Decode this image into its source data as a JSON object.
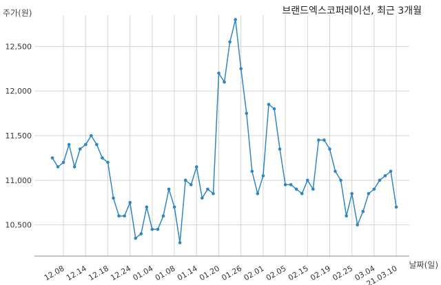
{
  "chart_data": {
    "type": "line",
    "title": "브랜드엑스코퍼레이션, 최근 3개월",
    "ylabel": "주가(원)",
    "xlabel": "날짜(일)",
    "ylim": [
      10150,
      12850
    ],
    "yticks": [
      10500,
      11000,
      11500,
      12000,
      12500
    ],
    "ytick_labels": [
      "10,500",
      "11,000",
      "11,500",
      "12,000",
      "12,500"
    ],
    "xtick_labels": [
      "12.08",
      "12.14",
      "12.18",
      "12.24",
      "01.04",
      "01.08",
      "01.14",
      "01.20",
      "01.26",
      "02.01",
      "02.05",
      "02.15",
      "02.19",
      "02.25",
      "03.04",
      "21.03.10"
    ],
    "xtick_index": [
      2,
      6,
      10,
      14,
      18,
      22,
      26,
      30,
      34,
      38,
      42,
      46,
      50,
      54,
      58,
      62
    ],
    "grid": true,
    "color": "#2e86c1",
    "series": [
      {
        "values": [
          11250,
          11150,
          11200,
          11400,
          11150,
          11350,
          11400,
          11500,
          11400,
          11250,
          11200,
          10800,
          10600,
          10600,
          10750,
          10350,
          10400,
          10700,
          10450,
          10450,
          10600,
          10900,
          10700,
          10300,
          11000,
          10950,
          11150,
          10800,
          10900,
          10850,
          12200,
          12100,
          12550,
          12800,
          12250,
          11750,
          11100,
          10850,
          11050,
          11850,
          11800,
          11350,
          10950,
          10950,
          10900,
          10850,
          11000,
          10900,
          11450,
          11450,
          11350,
          11100,
          11000,
          10600,
          10850,
          10500,
          10650,
          10850,
          10900,
          11000,
          11050,
          11100,
          10700
        ]
      }
    ]
  }
}
